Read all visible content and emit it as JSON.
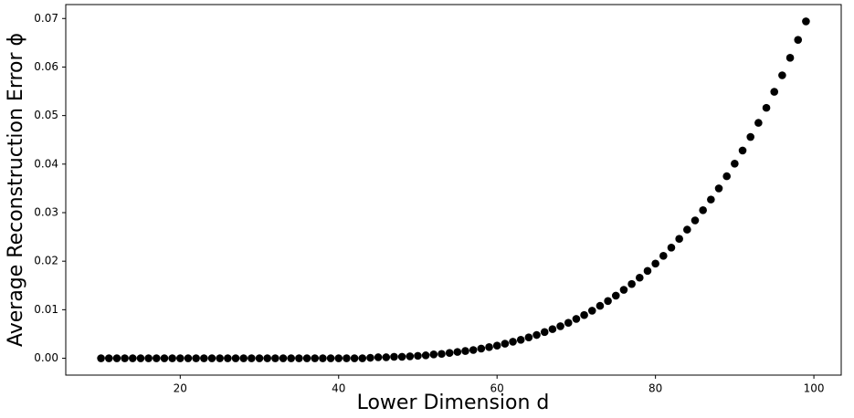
{
  "chart_data": {
    "type": "scatter",
    "xlabel": "Lower Dimension d",
    "ylabel": "Average Reconstruction Error ϕ",
    "x": [
      10,
      11,
      12,
      13,
      14,
      15,
      16,
      17,
      18,
      19,
      20,
      21,
      22,
      23,
      24,
      25,
      26,
      27,
      28,
      29,
      30,
      31,
      32,
      33,
      34,
      35,
      36,
      37,
      38,
      39,
      40,
      41,
      42,
      43,
      44,
      45,
      46,
      47,
      48,
      49,
      50,
      51,
      52,
      53,
      54,
      55,
      56,
      57,
      58,
      59,
      60,
      61,
      62,
      63,
      64,
      65,
      66,
      67,
      68,
      69,
      70,
      71,
      72,
      73,
      74,
      75,
      76,
      77,
      78,
      79,
      80,
      81,
      82,
      83,
      84,
      85,
      86,
      87,
      88,
      89,
      90,
      91,
      92,
      93,
      94,
      95,
      96,
      97,
      98,
      99
    ],
    "series": [
      {
        "color": "#000000",
        "values": [
          0,
          0,
          0,
          0,
          0,
          0,
          0,
          0,
          0,
          0,
          0,
          0,
          0,
          0,
          0,
          0,
          0,
          0,
          0,
          0,
          0,
          0,
          0,
          0,
          0,
          0,
          0,
          0,
          0,
          0,
          0,
          0,
          0,
          0,
          0.0001,
          0.0002,
          0.0002,
          0.0003,
          0.0003,
          0.0004,
          0.0005,
          0.0006,
          0.0008,
          0.0009,
          0.0011,
          0.0013,
          0.0015,
          0.0017,
          0.002,
          0.0023,
          0.0026,
          0.003,
          0.0034,
          0.0038,
          0.0043,
          0.0048,
          0.0054,
          0.006,
          0.0066,
          0.0073,
          0.0081,
          0.0089,
          0.0098,
          0.0108,
          0.0118,
          0.0129,
          0.0141,
          0.0153,
          0.0166,
          0.018,
          0.0195,
          0.0211,
          0.0228,
          0.0246,
          0.0265,
          0.0284,
          0.0305,
          0.0327,
          0.035,
          0.0375,
          0.0401,
          0.0428,
          0.0456,
          0.0485,
          0.0516,
          0.0549,
          0.0583,
          0.0619,
          0.0656,
          0.0694
        ]
      }
    ],
    "xlim": [
      5.55,
      103.45
    ],
    "ylim": [
      -0.00347,
      0.07287
    ],
    "xticks": [
      20,
      40,
      60,
      80,
      100
    ],
    "yticks": [
      {
        "value": 0,
        "label": "0.00"
      },
      {
        "value": 0.01,
        "label": "0.01"
      },
      {
        "value": 0.02,
        "label": "0.02"
      },
      {
        "value": 0.03,
        "label": "0.03"
      },
      {
        "value": 0.04,
        "label": "0.04"
      },
      {
        "value": 0.05,
        "label": "0.05"
      },
      {
        "value": 0.06,
        "label": "0.06"
      },
      {
        "value": 0.07,
        "label": "0.07"
      }
    ],
    "grid": false
  }
}
